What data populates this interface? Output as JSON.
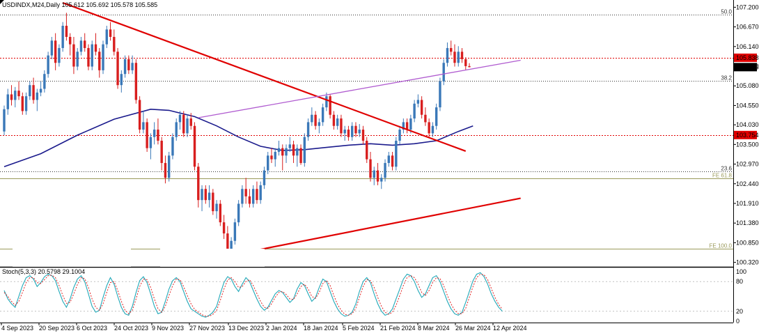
{
  "chart_data": {
    "type": "candlestick",
    "title": "USDINDX,M24,Daily  105.612 105.692 105.578 105.585",
    "x_tick_labels": [
      "4 Sep 2023",
      "20 Sep 2023",
      "6 Oct 2023",
      "24 Oct 2023",
      "9 Nov 2023",
      "27 Nov 2023",
      "13 Dec 2023",
      "2 Jan 2024",
      "18 Jan 2024",
      "5 Feb 2024",
      "21 Feb 2024",
      "8 Mar 2024",
      "26 Mar 2024",
      "12 Apr 2024"
    ],
    "y_tick_labels": [
      "107.200",
      "106.670",
      "106.140",
      "105.610",
      "105.080",
      "104.550",
      "104.030",
      "103.500",
      "102.970",
      "102.440",
      "101.910",
      "101.380",
      "100.850",
      "100.320"
    ],
    "ylim": [
      100.2,
      107.32
    ],
    "price_tags": [
      {
        "label": "105.838",
        "value": 105.838,
        "color": "#e00000"
      },
      {
        "label": "105.585",
        "value": 105.585,
        "color": "#000000"
      },
      {
        "label": "103.754",
        "value": 103.754,
        "color": "#e00000"
      }
    ],
    "levels": [
      {
        "label": "50.0",
        "value": 107.0,
        "color": "#333333",
        "style": "dotted"
      },
      {
        "label": "38.2",
        "value": 105.21,
        "color": "#333333",
        "style": "dotted"
      },
      {
        "label": "23.6",
        "value": 102.77,
        "color": "#333333",
        "style": "dotted"
      },
      {
        "label": "FE 61.8",
        "value": 102.58,
        "color": "#9a9a5a",
        "style": "solid"
      },
      {
        "label": "FE 100.0",
        "value": 100.68,
        "color": "#9a9a5a",
        "style": "solid"
      }
    ],
    "candles": [
      [
        103.85,
        104.55,
        103.75,
        104.45
      ],
      [
        104.45,
        105.0,
        104.3,
        104.85
      ],
      [
        104.85,
        105.1,
        104.55,
        104.7
      ],
      [
        104.7,
        105.05,
        104.5,
        104.95
      ],
      [
        104.95,
        105.2,
        104.7,
        104.8
      ],
      [
        104.8,
        104.9,
        104.3,
        104.4
      ],
      [
        104.4,
        104.9,
        104.3,
        104.8
      ],
      [
        104.8,
        105.2,
        104.7,
        105.1
      ],
      [
        105.1,
        105.3,
        104.6,
        104.7
      ],
      [
        104.7,
        105.0,
        104.4,
        104.9
      ],
      [
        104.9,
        105.2,
        104.8,
        105.0
      ],
      [
        105.0,
        105.5,
        104.9,
        105.4
      ],
      [
        105.4,
        106.0,
        105.3,
        105.9
      ],
      [
        105.9,
        106.4,
        105.8,
        106.3
      ],
      [
        106.3,
        106.5,
        105.5,
        105.7
      ],
      [
        105.7,
        106.2,
        105.6,
        106.1
      ],
      [
        106.1,
        106.8,
        106.0,
        106.7
      ],
      [
        106.7,
        107.05,
        106.3,
        106.4
      ],
      [
        106.4,
        106.5,
        105.9,
        106.2
      ],
      [
        106.2,
        106.4,
        105.4,
        105.6
      ],
      [
        105.6,
        106.1,
        105.5,
        106.0
      ],
      [
        106.0,
        106.4,
        105.9,
        106.3
      ],
      [
        106.3,
        106.5,
        106.0,
        106.1
      ],
      [
        106.1,
        106.2,
        105.5,
        105.6
      ],
      [
        105.6,
        106.3,
        105.5,
        106.2
      ],
      [
        106.2,
        106.5,
        105.9,
        106.0
      ],
      [
        106.0,
        106.1,
        105.3,
        105.5
      ],
      [
        105.5,
        106.3,
        105.4,
        106.2
      ],
      [
        106.2,
        106.7,
        106.1,
        106.6
      ],
      [
        106.6,
        106.8,
        106.3,
        106.4
      ],
      [
        106.4,
        106.6,
        105.9,
        106.0
      ],
      [
        106.0,
        106.1,
        105.0,
        105.1
      ],
      [
        105.1,
        105.5,
        104.9,
        105.4
      ],
      [
        105.4,
        105.9,
        105.3,
        105.8
      ],
      [
        105.8,
        105.9,
        105.4,
        105.5
      ],
      [
        105.5,
        105.9,
        105.4,
        105.7
      ],
      [
        105.7,
        105.8,
        104.6,
        104.7
      ],
      [
        104.7,
        104.8,
        103.8,
        103.9
      ],
      [
        103.9,
        104.4,
        103.8,
        104.1
      ],
      [
        104.1,
        104.2,
        103.3,
        103.4
      ],
      [
        103.4,
        103.8,
        103.1,
        103.7
      ],
      [
        103.7,
        104.1,
        103.5,
        103.9
      ],
      [
        103.9,
        104.2,
        103.5,
        103.6
      ],
      [
        103.6,
        103.7,
        102.8,
        103.0
      ],
      [
        103.0,
        103.2,
        102.45,
        102.6
      ],
      [
        102.6,
        103.3,
        102.5,
        103.2
      ],
      [
        103.2,
        103.8,
        103.1,
        103.7
      ],
      [
        103.7,
        104.2,
        103.6,
        104.1
      ],
      [
        104.1,
        104.4,
        103.9,
        104.3
      ],
      [
        104.3,
        104.4,
        103.7,
        103.8
      ],
      [
        103.8,
        104.3,
        103.7,
        104.2
      ],
      [
        104.2,
        104.35,
        103.9,
        104.0
      ],
      [
        104.0,
        104.1,
        102.8,
        102.9
      ],
      [
        102.9,
        103.0,
        101.8,
        102.0
      ],
      [
        102.0,
        102.4,
        101.7,
        102.3
      ],
      [
        102.3,
        102.4,
        101.9,
        102.0
      ],
      [
        102.0,
        102.4,
        101.8,
        102.2
      ],
      [
        102.2,
        102.3,
        101.6,
        101.7
      ],
      [
        101.7,
        102.0,
        101.5,
        101.9
      ],
      [
        101.9,
        102.0,
        101.3,
        101.4
      ],
      [
        101.4,
        101.6,
        100.95,
        101.1
      ],
      [
        101.1,
        101.3,
        100.55,
        100.6
      ],
      [
        100.6,
        101.0,
        100.5,
        100.9
      ],
      [
        100.9,
        101.5,
        100.8,
        101.4
      ],
      [
        101.4,
        102.0,
        101.3,
        101.9
      ],
      [
        101.9,
        102.4,
        101.8,
        102.3
      ],
      [
        102.3,
        102.6,
        101.9,
        102.1
      ],
      [
        102.1,
        102.3,
        101.8,
        101.9
      ],
      [
        101.9,
        102.4,
        101.8,
        102.3
      ],
      [
        102.3,
        102.5,
        101.9,
        102.0
      ],
      [
        102.0,
        102.5,
        101.9,
        102.4
      ],
      [
        102.4,
        102.9,
        102.3,
        102.8
      ],
      [
        102.8,
        103.3,
        102.7,
        103.2
      ],
      [
        103.2,
        103.4,
        103.0,
        103.1
      ],
      [
        103.1,
        103.4,
        102.9,
        103.3
      ],
      [
        103.3,
        103.6,
        103.2,
        103.4
      ],
      [
        103.4,
        103.5,
        102.8,
        103.2
      ],
      [
        103.2,
        103.5,
        103.0,
        103.4
      ],
      [
        103.4,
        103.7,
        103.3,
        103.5
      ],
      [
        103.5,
        103.6,
        103.0,
        103.2
      ],
      [
        103.2,
        103.5,
        102.9,
        103.4
      ],
      [
        103.4,
        103.5,
        102.95,
        103.0
      ],
      [
        103.0,
        103.8,
        102.9,
        103.7
      ],
      [
        103.7,
        104.2,
        103.6,
        104.1
      ],
      [
        104.1,
        104.5,
        104.0,
        104.3
      ],
      [
        104.3,
        104.4,
        103.9,
        104.0
      ],
      [
        104.0,
        104.2,
        103.8,
        104.1
      ],
      [
        104.1,
        104.6,
        104.0,
        104.5
      ],
      [
        104.5,
        104.9,
        104.4,
        104.8
      ],
      [
        104.8,
        104.85,
        104.2,
        104.3
      ],
      [
        104.3,
        104.4,
        103.9,
        104.0
      ],
      [
        104.0,
        104.3,
        103.9,
        104.2
      ],
      [
        104.2,
        104.3,
        103.7,
        103.8
      ],
      [
        103.8,
        104.0,
        103.6,
        103.9
      ],
      [
        103.9,
        104.0,
        103.6,
        103.7
      ],
      [
        103.7,
        104.1,
        103.6,
        104.0
      ],
      [
        104.0,
        104.1,
        103.7,
        103.8
      ],
      [
        103.8,
        104.05,
        103.7,
        103.9
      ],
      [
        103.9,
        104.0,
        103.5,
        103.6
      ],
      [
        103.6,
        103.7,
        103.0,
        103.1
      ],
      [
        103.1,
        103.3,
        102.5,
        102.6
      ],
      [
        102.6,
        102.9,
        102.4,
        102.8
      ],
      [
        102.8,
        103.0,
        102.4,
        102.5
      ],
      [
        102.5,
        102.7,
        102.3,
        102.6
      ],
      [
        102.6,
        103.1,
        102.5,
        103.0
      ],
      [
        103.0,
        103.3,
        102.9,
        103.2
      ],
      [
        103.2,
        103.3,
        102.8,
        102.9
      ],
      [
        102.9,
        103.7,
        102.8,
        103.6
      ],
      [
        103.6,
        104.0,
        103.5,
        103.9
      ],
      [
        103.9,
        104.2,
        103.8,
        104.1
      ],
      [
        104.1,
        104.2,
        103.8,
        103.9
      ],
      [
        103.9,
        104.3,
        103.8,
        104.2
      ],
      [
        104.2,
        104.7,
        104.1,
        104.6
      ],
      [
        104.6,
        104.85,
        104.5,
        104.7
      ],
      [
        104.7,
        104.8,
        104.2,
        104.3
      ],
      [
        104.3,
        104.5,
        104.0,
        104.1
      ],
      [
        104.1,
        104.2,
        103.7,
        103.8
      ],
      [
        103.8,
        104.1,
        103.7,
        104.0
      ],
      [
        104.0,
        104.6,
        103.9,
        104.5
      ],
      [
        104.5,
        105.3,
        104.4,
        105.2
      ],
      [
        105.2,
        105.8,
        105.1,
        105.7
      ],
      [
        105.7,
        106.25,
        105.6,
        106.1
      ],
      [
        106.1,
        106.3,
        105.9,
        106.0
      ],
      [
        106.0,
        106.2,
        105.6,
        105.7
      ],
      [
        105.7,
        106.15,
        105.6,
        106.0
      ],
      [
        106.0,
        106.1,
        105.7,
        105.8
      ],
      [
        105.8,
        105.85,
        105.5,
        105.612
      ],
      [
        105.612,
        105.692,
        105.578,
        105.585
      ]
    ],
    "sma_line": [
      [
        0,
        102.9
      ],
      [
        10,
        103.25
      ],
      [
        20,
        103.75
      ],
      [
        30,
        104.18
      ],
      [
        40,
        104.45
      ],
      [
        45,
        104.42
      ],
      [
        52,
        104.25
      ],
      [
        58,
        104.0
      ],
      [
        64,
        103.7
      ],
      [
        70,
        103.45
      ],
      [
        76,
        103.34
      ],
      [
        82,
        103.36
      ],
      [
        88,
        103.42
      ],
      [
        94,
        103.48
      ],
      [
        100,
        103.52
      ],
      [
        106,
        103.48
      ],
      [
        112,
        103.52
      ],
      [
        118,
        103.6
      ],
      [
        124,
        103.85
      ],
      [
        128,
        104.0
      ]
    ],
    "trendlines": [
      {
        "color": "#e00000",
        "points": [
          [
            16,
            107.32
          ],
          [
            126,
            103.32
          ]
        ]
      },
      {
        "color": "#e00000",
        "points": [
          [
            52,
            100.32
          ],
          [
            141,
            102.05
          ]
        ]
      },
      {
        "color": "#b05cd0",
        "points": [
          [
            53,
            104.22
          ],
          [
            141,
            105.77
          ]
        ]
      }
    ],
    "stoch": {
      "label": "Stoch(5,3,3) 20.5798 29.1004",
      "ylim": [
        0,
        100
      ],
      "y_tick_labels": [
        "100",
        "80",
        "20",
        "0"
      ],
      "main": [
        62,
        45,
        35,
        28,
        50,
        72,
        88,
        92,
        85,
        70,
        78,
        90,
        95,
        92,
        82,
        60,
        40,
        28,
        45,
        68,
        85,
        92,
        80,
        55,
        30,
        18,
        22,
        48,
        72,
        88,
        75,
        50,
        28,
        15,
        12,
        30,
        58,
        82,
        90,
        78,
        55,
        30,
        15,
        18,
        40,
        65,
        82,
        88,
        80,
        60,
        40,
        25,
        20,
        15,
        10,
        8,
        12,
        18,
        30,
        55,
        78,
        90,
        85,
        70,
        60,
        75,
        88,
        80,
        62,
        45,
        30,
        22,
        28,
        42,
        55,
        62,
        58,
        48,
        38,
        45,
        65,
        78,
        72,
        55,
        40,
        48,
        68,
        85,
        80,
        60,
        40,
        25,
        15,
        10,
        12,
        18,
        35,
        60,
        80,
        88,
        78,
        55,
        35,
        20,
        12,
        15,
        25,
        45,
        65,
        85,
        95,
        92,
        80,
        62,
        48,
        55,
        72,
        88,
        92,
        80,
        60,
        40,
        25,
        15,
        12,
        18,
        38,
        60,
        82,
        95,
        98,
        90,
        75,
        55,
        40,
        28,
        20
      ],
      "signal": [
        58,
        50,
        40,
        32,
        40,
        58,
        78,
        88,
        88,
        78,
        76,
        84,
        92,
        93,
        88,
        72,
        52,
        36,
        38,
        55,
        74,
        88,
        86,
        68,
        45,
        28,
        22,
        35,
        58,
        78,
        80,
        62,
        40,
        22,
        15,
        22,
        45,
        70,
        85,
        84,
        68,
        45,
        25,
        18,
        30,
        52,
        72,
        85,
        84,
        70,
        52,
        35,
        24,
        18,
        13,
        10,
        10,
        14,
        22,
        42,
        65,
        83,
        88,
        80,
        68,
        70,
        80,
        84,
        72,
        56,
        40,
        28,
        26,
        35,
        48,
        58,
        60,
        54,
        45,
        44,
        55,
        70,
        75,
        65,
        50,
        46,
        58,
        76,
        82,
        72,
        52,
        34,
        22,
        14,
        12,
        15,
        26,
        48,
        70,
        84,
        82,
        68,
        48,
        30,
        18,
        14,
        18,
        32,
        52,
        72,
        88,
        92,
        88,
        75,
        58,
        52,
        62,
        78,
        88,
        86,
        72,
        52,
        35,
        22,
        15,
        15,
        26,
        48,
        70,
        88,
        95,
        94,
        84,
        66,
        48,
        34,
        24
      ]
    }
  }
}
